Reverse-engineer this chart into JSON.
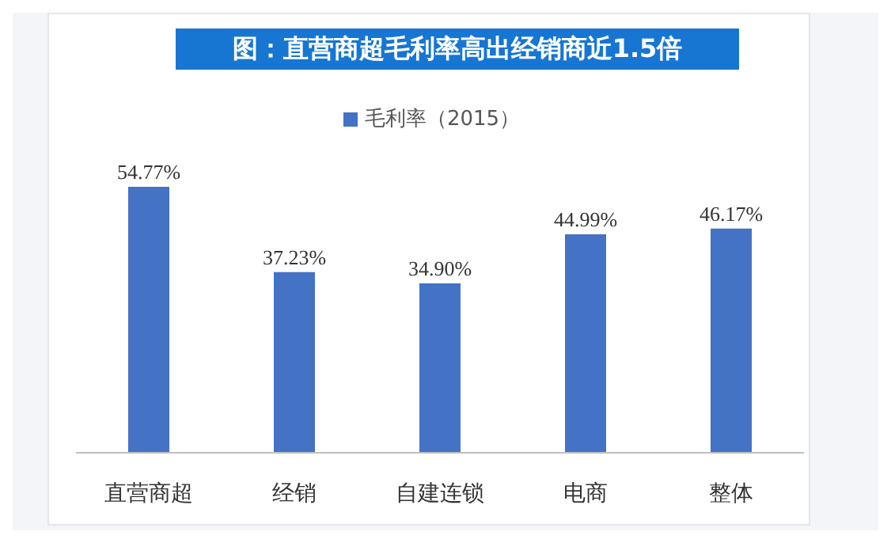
{
  "chart_data": {
    "type": "bar",
    "title": "图：直营商超毛利率高出经销商近1.5倍",
    "categories": [
      "直营商超",
      "经销",
      "自建连锁",
      "电商",
      "整体"
    ],
    "series": [
      {
        "name": "毛利率（2015）",
        "color": "#4472c4",
        "values": [
          54.77,
          37.23,
          34.9,
          44.99,
          46.17
        ],
        "value_labels": [
          "54.77%",
          "37.23%",
          "34.90%",
          "44.99%",
          "46.17%"
        ]
      }
    ],
    "legend": "top",
    "grid": false
  }
}
